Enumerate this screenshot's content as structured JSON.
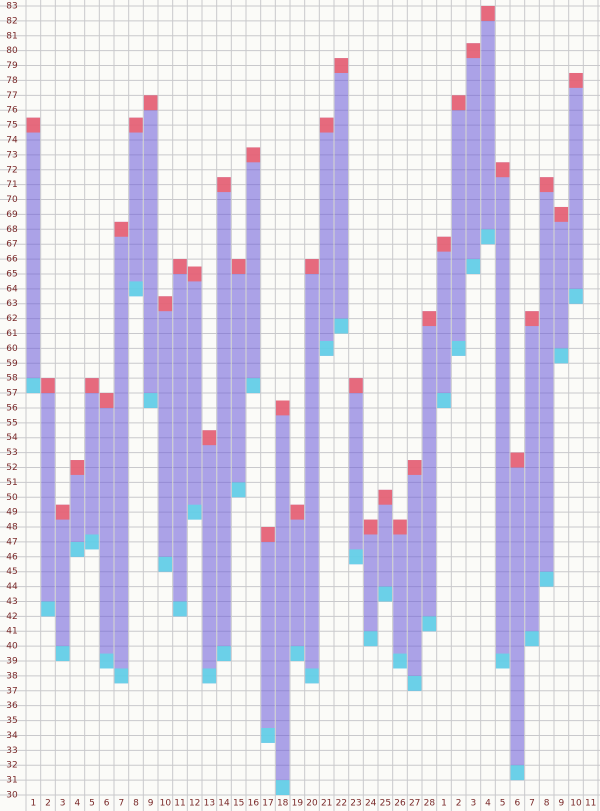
{
  "chart_data": {
    "type": "range_bar",
    "categories": [
      "1",
      "2",
      "3",
      "4",
      "5",
      "6",
      "7",
      "8",
      "9",
      "10",
      "11",
      "12",
      "13",
      "14",
      "15",
      "16",
      "17",
      "18",
      "19",
      "20",
      "21",
      "22",
      "23",
      "24",
      "25",
      "26",
      "27",
      "28",
      "1",
      "2",
      "3",
      "4",
      "5",
      "6",
      "7",
      "8",
      "9",
      "10",
      "11"
    ],
    "highs": [
      75.5,
      58,
      49.5,
      52.5,
      58,
      57,
      68.5,
      75.5,
      77,
      63.5,
      66,
      65.5,
      54.5,
      71.5,
      66,
      73.5,
      48,
      56.5,
      49.5,
      66,
      75.5,
      79.5,
      58,
      48.5,
      50.5,
      48.5,
      52.5,
      62.5,
      67.5,
      77,
      80.5,
      83,
      72.5,
      53,
      62.5,
      71.5,
      69.5,
      78.5,
      null
    ],
    "lows": [
      57,
      42,
      39,
      46,
      46.5,
      38.5,
      37.5,
      63.5,
      56,
      45,
      42,
      48.5,
      37.5,
      39,
      50,
      57,
      33.5,
      30,
      39,
      37.5,
      59.5,
      61,
      45.5,
      40,
      43,
      38.5,
      37,
      41,
      56,
      59.5,
      65,
      67,
      38.5,
      31,
      40,
      44,
      59,
      63,
      null
    ],
    "high_color": "#f0606a",
    "low_color": "#5fd8e8",
    "body_color": "#6a5ad8",
    "ylim": [
      30,
      83
    ],
    "yticks": [
      30,
      31,
      32,
      33,
      34,
      35,
      36,
      37,
      38,
      39,
      40,
      41,
      42,
      43,
      44,
      45,
      46,
      47,
      48,
      49,
      50,
      51,
      52,
      53,
      54,
      55,
      56,
      57,
      58,
      59,
      60,
      61,
      62,
      63,
      64,
      65,
      66,
      67,
      68,
      69,
      70,
      71,
      72,
      73,
      74,
      75,
      76,
      77,
      78,
      79,
      80,
      81,
      82,
      83
    ],
    "grid": true
  }
}
